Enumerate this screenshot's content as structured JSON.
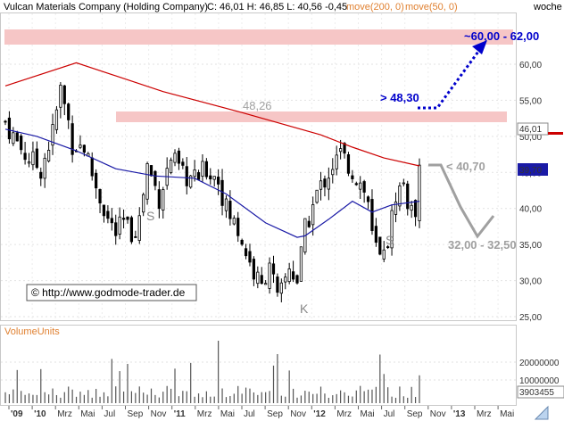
{
  "header": {
    "name": "Vulcan Materials Company (Holding Company)",
    "ohlc": "C: 46,01 H: 46,85 L: 40,56 -0,45",
    "ma200": "move(200, 0)",
    "ma50": "move(50, 0)",
    "period": "woche"
  },
  "colors": {
    "ma200": "#cc0000",
    "ma50": "#1a1aa6",
    "candle_up": "#ffffff",
    "candle_down": "#000000",
    "resistance_band": "#f6c6c6",
    "annotation_blue": "#0000cc",
    "annotation_gray": "#a0a0a0"
  },
  "price_badges": {
    "last": "46,01",
    "support": "39,70"
  },
  "annotations": {
    "band_label": "48,26",
    "breakout": "> 48,30",
    "target": "~60,00 - 62,00",
    "support": "< 40,70",
    "lower_target": "32,00 - 32,50",
    "left_shoulder": "S",
    "head": "K",
    "right_shoulder": "S",
    "copyright": "© http://www.godmode-trader.de"
  },
  "volume_panel": {
    "title": "VolumeUnits",
    "last_value": "3903455"
  },
  "chart_data": [
    {
      "type": "candlestick",
      "title": "Vulcan Materials Company (Holding Company)",
      "frequency": "weekly",
      "y_scale": "linear",
      "ylim": [
        24.5,
        64.5
      ],
      "y_ticks": [
        "25,00",
        "30,00",
        "35,00",
        "40,00",
        "45,00",
        "50,00",
        "55,00",
        "60,00"
      ],
      "x_ticks": [
        "'09",
        "'10",
        "Mrz",
        "Mai",
        "Jul",
        "Sep",
        "Nov",
        "'11",
        "Mrz",
        "Mai",
        "Jul",
        "Sep",
        "Nov",
        "'12",
        "Mrz",
        "Mai",
        "Jul",
        "Sep",
        "Nov",
        "'13",
        "Mrz",
        "Mai"
      ],
      "grid": true,
      "close_path": [
        [
          0,
          52.0
        ],
        [
          2,
          50.0
        ],
        [
          5,
          47.5
        ],
        [
          9,
          45.5
        ],
        [
          12,
          50.5
        ],
        [
          14,
          56.5
        ],
        [
          16,
          52.0
        ],
        [
          17,
          49.0
        ],
        [
          20,
          48.5
        ],
        [
          23,
          43.0
        ],
        [
          26,
          38.5
        ],
        [
          28,
          36.5
        ],
        [
          30,
          38.0
        ],
        [
          32,
          36.5
        ],
        [
          34,
          38.5
        ],
        [
          36,
          46.0
        ],
        [
          39,
          41.5
        ],
        [
          42,
          47.0
        ],
        [
          45,
          44.5
        ],
        [
          48,
          44.0
        ],
        [
          51,
          45.5
        ],
        [
          54,
          44.0
        ],
        [
          56,
          40.0
        ],
        [
          59,
          37.0
        ],
        [
          61,
          34.0
        ],
        [
          63,
          31.0
        ],
        [
          65,
          29.0
        ],
        [
          67,
          33.0
        ],
        [
          69,
          27.0
        ],
        [
          70,
          28.5
        ],
        [
          72,
          32.0
        ],
        [
          74,
          30.0
        ],
        [
          76,
          37.0
        ],
        [
          79,
          42.0
        ],
        [
          81,
          44.0
        ],
        [
          83,
          46.0
        ],
        [
          85,
          47.5
        ],
        [
          87,
          46.0
        ],
        [
          90,
          43.5
        ],
        [
          92,
          41.0
        ],
        [
          93,
          36.0
        ],
        [
          95,
          33.0
        ],
        [
          96,
          35.0
        ],
        [
          97,
          35.5
        ],
        [
          99,
          42.0
        ],
        [
          101,
          43.5
        ],
        [
          102,
          41.0
        ],
        [
          103,
          39.0
        ],
        [
          104,
          40.0
        ],
        [
          105,
          46.0
        ]
      ],
      "series": [
        {
          "name": "move(200, 0)",
          "points": [
            [
              0,
              57.0
            ],
            [
              18,
              60.2
            ],
            [
              40,
              56.2
            ],
            [
              60,
              53.3
            ],
            [
              80,
              50.2
            ],
            [
              88,
              48.5
            ],
            [
              96,
              47.0
            ],
            [
              105,
              45.9
            ]
          ]
        },
        {
          "name": "move(50, 0)",
          "points": [
            [
              0,
              51.0
            ],
            [
              8,
              50.0
            ],
            [
              18,
              48.0
            ],
            [
              28,
              45.5
            ],
            [
              38,
              44.5
            ],
            [
              48,
              44.2
            ],
            [
              56,
              42.0
            ],
            [
              66,
              38.0
            ],
            [
              74,
              36.0
            ],
            [
              76,
              36.2
            ],
            [
              82,
              38.5
            ],
            [
              88,
              41.0
            ],
            [
              93,
              39.5
            ],
            [
              98,
              40.5
            ],
            [
              105,
              41.0
            ]
          ]
        }
      ],
      "levels": [
        {
          "label": "48,26",
          "value": 48.26
        },
        {
          "label": "> 48,30",
          "value": 48.3
        },
        {
          "label": "~60,00 - 62,00",
          "low": 60.0,
          "high": 62.0
        },
        {
          "label": "< 40,70",
          "value": 40.7
        },
        {
          "label": "32,00 - 32,50",
          "low": 32.0,
          "high": 32.5
        }
      ],
      "last_close": 46.01,
      "marked_level": 39.7
    },
    {
      "type": "bar",
      "title": "VolumeUnits",
      "y_ticks": [
        "20000000",
        "10000000",
        "3903455"
      ],
      "last_value": 3903455
    }
  ]
}
